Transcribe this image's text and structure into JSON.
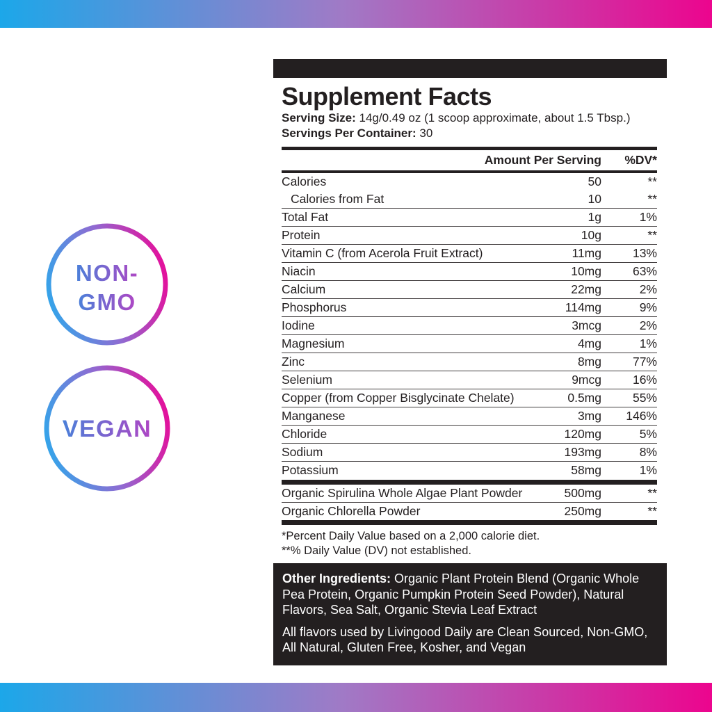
{
  "colors": {
    "dark": "#231F20",
    "gradient_left": "#1CA7E9",
    "gradient_mid": "#A07AC6",
    "gradient_right": "#EC058E",
    "badge_text_start": "#4B80D9",
    "badge_text_end": "#AF46C4"
  },
  "badges": {
    "non_gmo": {
      "line1": "NON-",
      "line2": "GMO"
    },
    "vegan": {
      "label": "VEGAN"
    }
  },
  "panel": {
    "title": "Supplement Facts",
    "serving_size_label": "Serving Size:",
    "serving_size_value": " 14g/0.49 oz (1 scoop approximate, about 1.5 Tbsp.)",
    "servings_label": "Servings Per Container:",
    "servings_value": " 30",
    "header": {
      "amount": "Amount Per Serving",
      "dv": "%DV*"
    },
    "rows": [
      {
        "name": "Calories",
        "amount": "50",
        "dv": "**",
        "sep": false,
        "indent": false
      },
      {
        "name": "Calories from Fat",
        "amount": "10",
        "dv": "**",
        "sep": false,
        "indent": true
      },
      {
        "name": "Total Fat",
        "amount": "1g",
        "dv": "1%",
        "sep": true,
        "indent": false
      },
      {
        "name": "Protein",
        "amount": "10g",
        "dv": "**",
        "sep": true,
        "indent": false
      },
      {
        "name": "Vitamin C (from Acerola Fruit Extract)",
        "amount": "11mg",
        "dv": "13%",
        "sep": true,
        "indent": false
      },
      {
        "name": "Niacin",
        "amount": "10mg",
        "dv": "63%",
        "sep": true,
        "indent": false
      },
      {
        "name": "Calcium",
        "amount": "22mg",
        "dv": "2%",
        "sep": true,
        "indent": false
      },
      {
        "name": "Phosphorus",
        "amount": "114mg",
        "dv": "9%",
        "sep": true,
        "indent": false
      },
      {
        "name": "Iodine",
        "amount": "3mcg",
        "dv": "2%",
        "sep": true,
        "indent": false
      },
      {
        "name": "Magnesium",
        "amount": "4mg",
        "dv": "1%",
        "sep": true,
        "indent": false
      },
      {
        "name": "Zinc",
        "amount": "8mg",
        "dv": "77%",
        "sep": true,
        "indent": false
      },
      {
        "name": "Selenium",
        "amount": "9mcg",
        "dv": "16%",
        "sep": true,
        "indent": false
      },
      {
        "name": "Copper (from Copper Bisglycinate Chelate)",
        "amount": "0.5mg",
        "dv": "55%",
        "sep": true,
        "indent": false
      },
      {
        "name": "Manganese",
        "amount": "3mg",
        "dv": "146%",
        "sep": true,
        "indent": false
      },
      {
        "name": "Chloride",
        "amount": "120mg",
        "dv": "5%",
        "sep": true,
        "indent": false
      },
      {
        "name": "Sodium",
        "amount": "193mg",
        "dv": "8%",
        "sep": true,
        "indent": false
      },
      {
        "name": "Potassium",
        "amount": "58mg",
        "dv": "1%",
        "sep": true,
        "indent": false
      }
    ],
    "blend_rows": [
      {
        "name": "Organic Spirulina Whole Algae Plant Powder",
        "amount": "500mg",
        "dv": "**",
        "sep": false,
        "indent": false
      },
      {
        "name": "Organic Chlorella Powder",
        "amount": "250mg",
        "dv": "**",
        "sep": true,
        "indent": false
      }
    ],
    "footnotes": [
      "*Percent Daily Value based on a 2,000 calorie diet.",
      "**% Daily Value (DV) not established."
    ],
    "other_ingredients": {
      "label": "Other Ingredients:",
      "text": " Organic Plant Protein Blend (Organic Whole Pea Protein, Organic Pumpkin Protein Seed Powder), Natural Flavors, Sea Salt, Organic Stevia Leaf Extract",
      "flavors_text": "All flavors used by Livingood Daily are Clean Sourced, Non-GMO, All Natural, Gluten Free, Kosher, and Vegan"
    }
  }
}
